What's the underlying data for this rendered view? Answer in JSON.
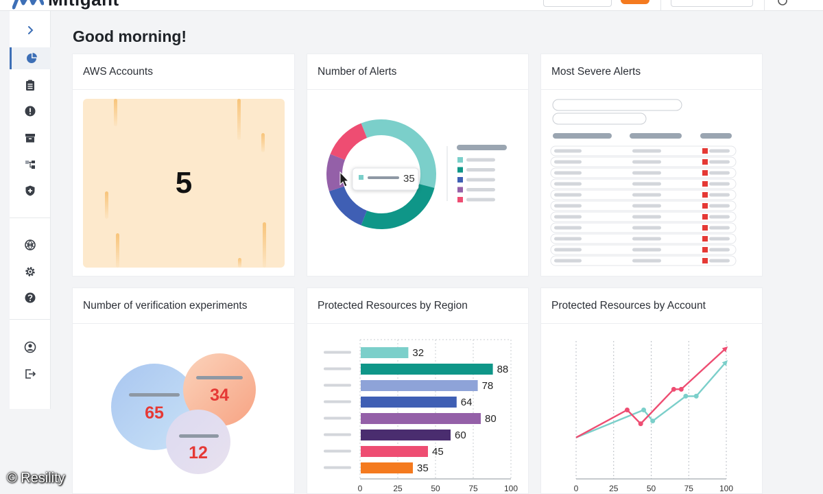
{
  "app": {
    "brand_name": "Mitigant"
  },
  "greeting": "Good morning!",
  "colors": {
    "accent": "#3d6fb6",
    "orange": "#f47a1f",
    "teal_light": "#7bcfca",
    "teal_dark": "#0f9688",
    "periwinkle": "#8ea3d8",
    "blue": "#3f5fb4",
    "purple": "#9460a8",
    "dark_purple": "#4a2d6f",
    "pink": "#ee4d72",
    "red": "#e53935",
    "placeholder": "#d3d6db"
  },
  "sidebar": {
    "items": [
      {
        "name": "expand",
        "icon": "chevron-right-icon",
        "active": false
      },
      {
        "name": "dashboard",
        "icon": "pie-chart-icon",
        "active": true
      },
      {
        "name": "reports",
        "icon": "clipboard-icon",
        "active": false
      },
      {
        "name": "alerts",
        "icon": "exclamation-icon",
        "active": false
      },
      {
        "name": "archive",
        "icon": "archive-box-icon",
        "active": false
      },
      {
        "name": "resources",
        "icon": "hierarchy-icon",
        "active": false
      },
      {
        "name": "security",
        "icon": "shield-icon",
        "active": false
      },
      {
        "name": "integrations",
        "icon": "aperture-icon",
        "active": false
      },
      {
        "name": "settings",
        "icon": "gear-icon",
        "active": false
      },
      {
        "name": "help",
        "icon": "help-icon",
        "active": false
      },
      {
        "name": "account",
        "icon": "user-icon",
        "active": false
      },
      {
        "name": "logout",
        "icon": "logout-icon",
        "active": false
      }
    ]
  },
  "cards": {
    "aws_accounts": {
      "title": "AWS Accounts",
      "value": "5"
    },
    "number_of_alerts": {
      "title": "Number of Alerts",
      "tooltip_value": "35"
    },
    "most_severe_alerts": {
      "title": "Most Severe Alerts"
    },
    "verification_experiments": {
      "title": "Number of verification experiments",
      "bubbles": [
        {
          "value": "65"
        },
        {
          "value": "34"
        },
        {
          "value": "12"
        }
      ]
    },
    "resources_by_region": {
      "title": "Protected Resources by Region"
    },
    "resources_by_account": {
      "title": "Protected Resources by Account"
    }
  },
  "watermark": "© Resility",
  "chart_data": [
    {
      "type": "pie",
      "title": "Number of Alerts",
      "style": "donut",
      "slices": [
        {
          "color": "#7bcfca",
          "value": 35
        },
        {
          "color": "#0f9688",
          "value": 27
        },
        {
          "color": "#3f5fb4",
          "value": 14
        },
        {
          "color": "#9460a8",
          "value": 11
        },
        {
          "color": "#ee4d72",
          "value": 13
        }
      ]
    },
    {
      "type": "bar",
      "title": "Protected Resources by Region",
      "orientation": "horizontal",
      "values": [
        32,
        88,
        78,
        64,
        80,
        60,
        45,
        35
      ],
      "colors": [
        "#7bcfca",
        "#0f9688",
        "#8ea3d8",
        "#3f5fb4",
        "#9460a8",
        "#4a2d6f",
        "#ee4d72",
        "#f47a1f"
      ],
      "xlim": [
        0,
        100
      ],
      "x_ticks": [
        "0",
        "25",
        "50",
        "75",
        "100"
      ],
      "grid": true
    },
    {
      "type": "line",
      "title": "Protected Resources by Account",
      "xlim": [
        0,
        100
      ],
      "ylim": [
        0,
        100
      ],
      "x_ticks": [
        "0",
        "25",
        "50",
        "75",
        "100"
      ],
      "grid": true,
      "series": [
        {
          "color": "#ee4d72",
          "points": [
            [
              0,
              30
            ],
            [
              34,
              50
            ],
            [
              43,
              40
            ],
            [
              65,
              65
            ],
            [
              70,
              65
            ],
            [
              100,
              95
            ]
          ]
        },
        {
          "color": "#7bcfca",
          "points": [
            [
              0,
              30
            ],
            [
              45,
              50
            ],
            [
              51,
              42
            ],
            [
              73,
              60
            ],
            [
              80,
              60
            ],
            [
              100,
              85
            ]
          ]
        }
      ]
    }
  ]
}
